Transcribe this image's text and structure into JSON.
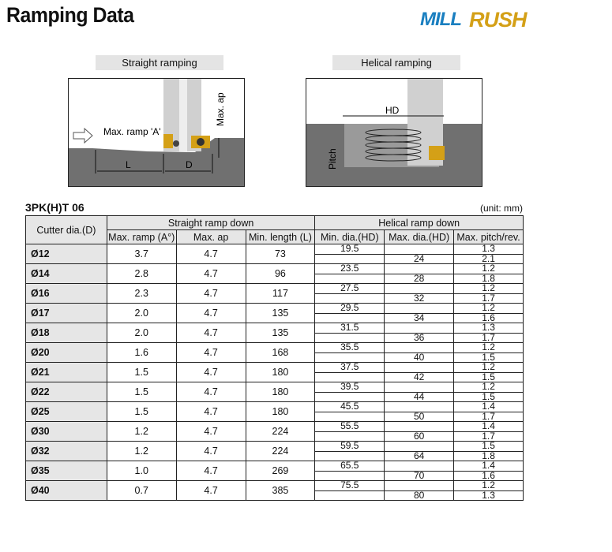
{
  "title": "Ramping Data",
  "logo": {
    "text": "MILLRUSH",
    "colors": {
      "mill": "#1a7fc0",
      "rush": "#d4a017"
    }
  },
  "diagrams": {
    "straight": {
      "label": "Straight ramping",
      "max_ramp": "Max. ramp 'A'",
      "max_ap": "Max. ap",
      "l": "L",
      "d": "D"
    },
    "helical": {
      "label": "Helical ramping",
      "hd": "HD",
      "pitch": "Pitch"
    }
  },
  "table": {
    "subtitle": "3PK(H)T 06",
    "unit": "(unit: mm)",
    "headers": {
      "cutter": "Cutter dia.(D)",
      "straight": "Straight ramp down",
      "helical": "Helical ramp down",
      "cols": [
        "Max. ramp (A°)",
        "Max. ap",
        "Min. length (L)",
        "Min. dia.(HD)",
        "Max. dia.(HD)",
        "Max. pitch/rev."
      ]
    },
    "rows": [
      {
        "d": "Ø12",
        "ramp": "3.7",
        "ap": "4.7",
        "len": "73",
        "min": "19.5",
        "max": "24",
        "pitch": [
          "1.3",
          "2.1"
        ]
      },
      {
        "d": "Ø14",
        "ramp": "2.8",
        "ap": "4.7",
        "len": "96",
        "min": "23.5",
        "max": "28",
        "pitch": [
          "1.2",
          "1.8"
        ]
      },
      {
        "d": "Ø16",
        "ramp": "2.3",
        "ap": "4.7",
        "len": "117",
        "min": "27.5",
        "max": "32",
        "pitch": [
          "1.2",
          "1.7"
        ]
      },
      {
        "d": "Ø17",
        "ramp": "2.0",
        "ap": "4.7",
        "len": "135",
        "min": "29.5",
        "max": "34",
        "pitch": [
          "1.2",
          "1.6"
        ]
      },
      {
        "d": "Ø18",
        "ramp": "2.0",
        "ap": "4.7",
        "len": "135",
        "min": "31.5",
        "max": "36",
        "pitch": [
          "1.3",
          "1.7"
        ]
      },
      {
        "d": "Ø20",
        "ramp": "1.6",
        "ap": "4.7",
        "len": "168",
        "min": "35.5",
        "max": "40",
        "pitch": [
          "1.2",
          "1.5"
        ]
      },
      {
        "d": "Ø21",
        "ramp": "1.5",
        "ap": "4.7",
        "len": "180",
        "min": "37.5",
        "max": "42",
        "pitch": [
          "1.2",
          "1.5"
        ]
      },
      {
        "d": "Ø22",
        "ramp": "1.5",
        "ap": "4.7",
        "len": "180",
        "min": "39.5",
        "max": "44",
        "pitch": [
          "1.2",
          "1.5"
        ]
      },
      {
        "d": "Ø25",
        "ramp": "1.5",
        "ap": "4.7",
        "len": "180",
        "min": "45.5",
        "max": "50",
        "pitch": [
          "1.4",
          "1.7"
        ]
      },
      {
        "d": "Ø30",
        "ramp": "1.2",
        "ap": "4.7",
        "len": "224",
        "min": "55.5",
        "max": "60",
        "pitch": [
          "1.4",
          "1.7"
        ]
      },
      {
        "d": "Ø32",
        "ramp": "1.2",
        "ap": "4.7",
        "len": "224",
        "min": "59.5",
        "max": "64",
        "pitch": [
          "1.5",
          "1.8"
        ]
      },
      {
        "d": "Ø35",
        "ramp": "1.0",
        "ap": "4.7",
        "len": "269",
        "min": "65.5",
        "max": "70",
        "pitch": [
          "1.4",
          "1.6"
        ]
      },
      {
        "d": "Ø40",
        "ramp": "0.7",
        "ap": "4.7",
        "len": "385",
        "min": "75.5",
        "max": "80",
        "pitch": [
          "1.2",
          "1.3"
        ]
      }
    ]
  }
}
